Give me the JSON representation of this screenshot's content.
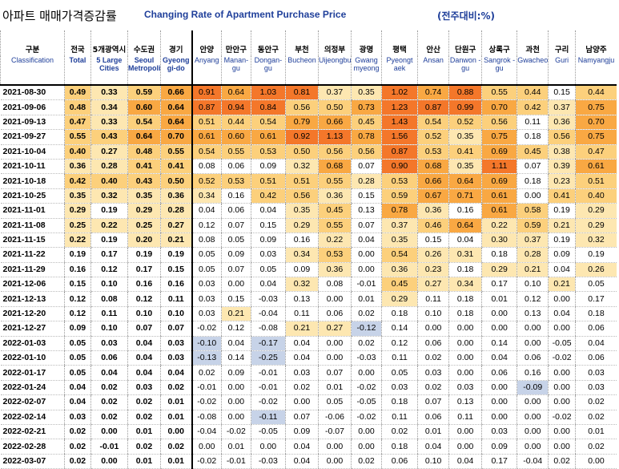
{
  "title": {
    "korean": "아파트 매매가격증감률",
    "english": "Changing Rate of Apartment Purchase Price",
    "unit": "(전주대비:%)"
  },
  "header": {
    "ko": [
      "구분",
      "전국",
      "5개광역시",
      "수도권",
      "경기",
      "안양",
      "만안구",
      "동안구",
      "부천",
      "의정부",
      "광명",
      "평택",
      "안산",
      "단원구",
      "상록구",
      "과천",
      "구리",
      "남양주"
    ],
    "en": [
      "Classification",
      "Total",
      "5 Large Cities",
      "Seoul Metropolitan",
      "Gyeong gi-do",
      "Anyang",
      "Manan-gu",
      "Dongan-gu",
      "Bucheon",
      "Uijeongbu",
      "Gwang myeong",
      "Pyeongt aek",
      "Ansan",
      "Danwon -gu",
      "Sangrok -gu",
      "Gwacheon",
      "Guri",
      "Namyangju"
    ]
  },
  "colors": {
    "highest": "#f4772a",
    "high": "#f9a843",
    "mid": "#fcd07c",
    "low": "#fde7b1",
    "negative": "#c7d3e8"
  },
  "chart_data": {
    "type": "table",
    "title": "Changing Rate of Apartment Purchase Price",
    "columns": [
      "Total",
      "5 Large Cities",
      "Seoul Metropolitan",
      "Gyeonggi-do",
      "Anyang",
      "Manan-gu",
      "Dongan-gu",
      "Bucheon",
      "Uijeongbu",
      "Gwangmyeong",
      "Pyeongtaek",
      "Ansan",
      "Danwon-gu",
      "Sangrok-gu",
      "Gwacheon",
      "Guri",
      "Namyangju"
    ],
    "rows": [
      {
        "date": "2021-08-30",
        "values": [
          "0.49",
          "0.33",
          "0.59",
          "0.66",
          "0.91",
          "0.64",
          "1.03",
          "0.81",
          "0.37",
          "0.35",
          "1.02",
          "0.74",
          "0.88",
          "0.55",
          "0.44",
          "0.15",
          "0.44"
        ]
      },
      {
        "date": "2021-09-06",
        "values": [
          "0.48",
          "0.34",
          "0.60",
          "0.64",
          "0.87",
          "0.94",
          "0.84",
          "0.56",
          "0.50",
          "0.73",
          "1.23",
          "0.87",
          "0.99",
          "0.70",
          "0.42",
          "0.37",
          "0.75"
        ]
      },
      {
        "date": "2021-09-13",
        "values": [
          "0.47",
          "0.33",
          "0.54",
          "0.64",
          "0.51",
          "0.44",
          "0.54",
          "0.79",
          "0.66",
          "0.45",
          "1.43",
          "0.54",
          "0.52",
          "0.56",
          "0.11",
          "0.36",
          "0.70"
        ]
      },
      {
        "date": "2021-09-27",
        "values": [
          "0.55",
          "0.43",
          "0.64",
          "0.70",
          "0.61",
          "0.60",
          "0.61",
          "0.92",
          "1.13",
          "0.78",
          "1.56",
          "0.52",
          "0.35",
          "0.75",
          "0.18",
          "0.56",
          "0.75"
        ]
      },
      {
        "date": "2021-10-04",
        "values": [
          "0.40",
          "0.27",
          "0.48",
          "0.55",
          "0.54",
          "0.55",
          "0.53",
          "0.50",
          "0.56",
          "0.56",
          "0.87",
          "0.53",
          "0.41",
          "0.69",
          "0.45",
          "0.38",
          "0.47"
        ]
      },
      {
        "date": "2021-10-11",
        "values": [
          "0.36",
          "0.28",
          "0.41",
          "0.41",
          "0.08",
          "0.06",
          "0.09",
          "0.32",
          "0.68",
          "0.07",
          "0.90",
          "0.68",
          "0.35",
          "1.11",
          "0.07",
          "0.39",
          "0.61"
        ]
      },
      {
        "date": "2021-10-18",
        "values": [
          "0.42",
          "0.40",
          "0.43",
          "0.50",
          "0.52",
          "0.53",
          "0.51",
          "0.51",
          "0.55",
          "0.28",
          "0.53",
          "0.66",
          "0.64",
          "0.69",
          "0.18",
          "0.23",
          "0.51"
        ]
      },
      {
        "date": "2021-10-25",
        "values": [
          "0.35",
          "0.32",
          "0.35",
          "0.36",
          "0.34",
          "0.16",
          "0.42",
          "0.56",
          "0.36",
          "0.15",
          "0.59",
          "0.67",
          "0.71",
          "0.61",
          "0.00",
          "0.41",
          "0.40"
        ]
      },
      {
        "date": "2021-11-01",
        "values": [
          "0.29",
          "0.19",
          "0.29",
          "0.28",
          "0.04",
          "0.06",
          "0.04",
          "0.35",
          "0.45",
          "0.13",
          "0.78",
          "0.36",
          "0.16",
          "0.61",
          "0.58",
          "0.19",
          "0.29"
        ]
      },
      {
        "date": "2021-11-08",
        "values": [
          "0.25",
          "0.22",
          "0.25",
          "0.27",
          "0.12",
          "0.07",
          "0.15",
          "0.29",
          "0.55",
          "0.07",
          "0.37",
          "0.46",
          "0.64",
          "0.22",
          "0.59",
          "0.21",
          "0.29"
        ]
      },
      {
        "date": "2021-11-15",
        "values": [
          "0.22",
          "0.19",
          "0.20",
          "0.21",
          "0.08",
          "0.05",
          "0.09",
          "0.16",
          "0.22",
          "0.04",
          "0.35",
          "0.15",
          "0.04",
          "0.30",
          "0.37",
          "0.19",
          "0.32"
        ]
      },
      {
        "date": "2021-11-22",
        "values": [
          "0.19",
          "0.17",
          "0.19",
          "0.19",
          "0.05",
          "0.09",
          "0.03",
          "0.34",
          "0.53",
          "0.00",
          "0.54",
          "0.26",
          "0.31",
          "0.18",
          "0.28",
          "0.09",
          "0.19"
        ]
      },
      {
        "date": "2021-11-29",
        "values": [
          "0.16",
          "0.12",
          "0.17",
          "0.15",
          "0.05",
          "0.07",
          "0.05",
          "0.09",
          "0.36",
          "0.00",
          "0.36",
          "0.23",
          "0.18",
          "0.29",
          "0.21",
          "0.04",
          "0.26"
        ]
      },
      {
        "date": "2021-12-06",
        "values": [
          "0.15",
          "0.10",
          "0.16",
          "0.16",
          "0.03",
          "0.00",
          "0.04",
          "0.32",
          "0.08",
          "-0.01",
          "0.45",
          "0.27",
          "0.34",
          "0.17",
          "0.10",
          "0.21",
          "0.05"
        ]
      },
      {
        "date": "2021-12-13",
        "values": [
          "0.12",
          "0.08",
          "0.12",
          "0.11",
          "0.03",
          "0.15",
          "-0.03",
          "0.13",
          "0.00",
          "0.01",
          "0.29",
          "0.11",
          "0.18",
          "0.01",
          "0.12",
          "0.00",
          "0.17"
        ]
      },
      {
        "date": "2021-12-20",
        "values": [
          "0.12",
          "0.11",
          "0.10",
          "0.10",
          "0.03",
          "0.21",
          "-0.04",
          "0.11",
          "0.06",
          "0.02",
          "0.18",
          "0.10",
          "0.18",
          "0.00",
          "0.13",
          "0.04",
          "0.18"
        ]
      },
      {
        "date": "2021-12-27",
        "values": [
          "0.09",
          "0.10",
          "0.07",
          "0.07",
          "-0.02",
          "0.12",
          "-0.08",
          "0.21",
          "0.27",
          "-0.12",
          "0.14",
          "0.00",
          "0.00",
          "0.00",
          "0.00",
          "0.00",
          "0.06"
        ]
      },
      {
        "date": "2022-01-03",
        "values": [
          "0.05",
          "0.03",
          "0.04",
          "0.03",
          "-0.10",
          "0.04",
          "-0.17",
          "0.04",
          "0.00",
          "0.02",
          "0.12",
          "0.06",
          "0.00",
          "0.14",
          "0.00",
          "-0.05",
          "0.04"
        ]
      },
      {
        "date": "2022-01-10",
        "values": [
          "0.05",
          "0.06",
          "0.04",
          "0.03",
          "-0.13",
          "0.14",
          "-0.25",
          "0.04",
          "0.00",
          "-0.03",
          "0.11",
          "0.02",
          "0.00",
          "0.04",
          "0.06",
          "-0.02",
          "0.06"
        ]
      },
      {
        "date": "2022-01-17",
        "values": [
          "0.05",
          "0.04",
          "0.04",
          "0.04",
          "0.02",
          "0.09",
          "-0.01",
          "0.03",
          "0.07",
          "0.00",
          "0.05",
          "0.03",
          "0.00",
          "0.06",
          "0.16",
          "0.00",
          "0.03"
        ]
      },
      {
        "date": "2022-01-24",
        "values": [
          "0.04",
          "0.02",
          "0.03",
          "0.02",
          "-0.01",
          "0.00",
          "-0.01",
          "0.02",
          "0.01",
          "-0.02",
          "0.03",
          "0.02",
          "0.03",
          "0.00",
          "-0.09",
          "0.00",
          "0.03"
        ]
      },
      {
        "date": "2022-02-07",
        "values": [
          "0.04",
          "0.02",
          "0.02",
          "0.01",
          "-0.02",
          "0.00",
          "-0.02",
          "0.00",
          "0.05",
          "-0.05",
          "0.18",
          "0.07",
          "0.13",
          "0.00",
          "0.00",
          "0.00",
          "0.02"
        ]
      },
      {
        "date": "2022-02-14",
        "values": [
          "0.03",
          "0.02",
          "0.02",
          "0.01",
          "-0.08",
          "0.00",
          "-0.11",
          "0.07",
          "-0.06",
          "-0.02",
          "0.11",
          "0.06",
          "0.11",
          "0.00",
          "0.00",
          "-0.02",
          "0.02"
        ]
      },
      {
        "date": "2022-02-21",
        "values": [
          "0.02",
          "0.00",
          "0.01",
          "0.00",
          "-0.04",
          "-0.02",
          "-0.05",
          "0.09",
          "-0.07",
          "0.00",
          "0.02",
          "0.01",
          "0.00",
          "0.03",
          "0.00",
          "0.00",
          "0.01"
        ]
      },
      {
        "date": "2022-02-28",
        "values": [
          "0.02",
          "-0.01",
          "0.02",
          "0.02",
          "0.00",
          "0.01",
          "0.00",
          "0.04",
          "0.00",
          "0.00",
          "0.18",
          "0.04",
          "0.00",
          "0.09",
          "0.00",
          "0.00",
          "0.02"
        ]
      },
      {
        "date": "2022-03-07",
        "values": [
          "0.02",
          "0.00",
          "0.01",
          "0.01",
          "-0.02",
          "-0.01",
          "-0.03",
          "0.04",
          "0.00",
          "0.02",
          "0.06",
          "0.10",
          "0.04",
          "0.17",
          "-0.04",
          "0.02",
          "0.00"
        ]
      }
    ]
  }
}
